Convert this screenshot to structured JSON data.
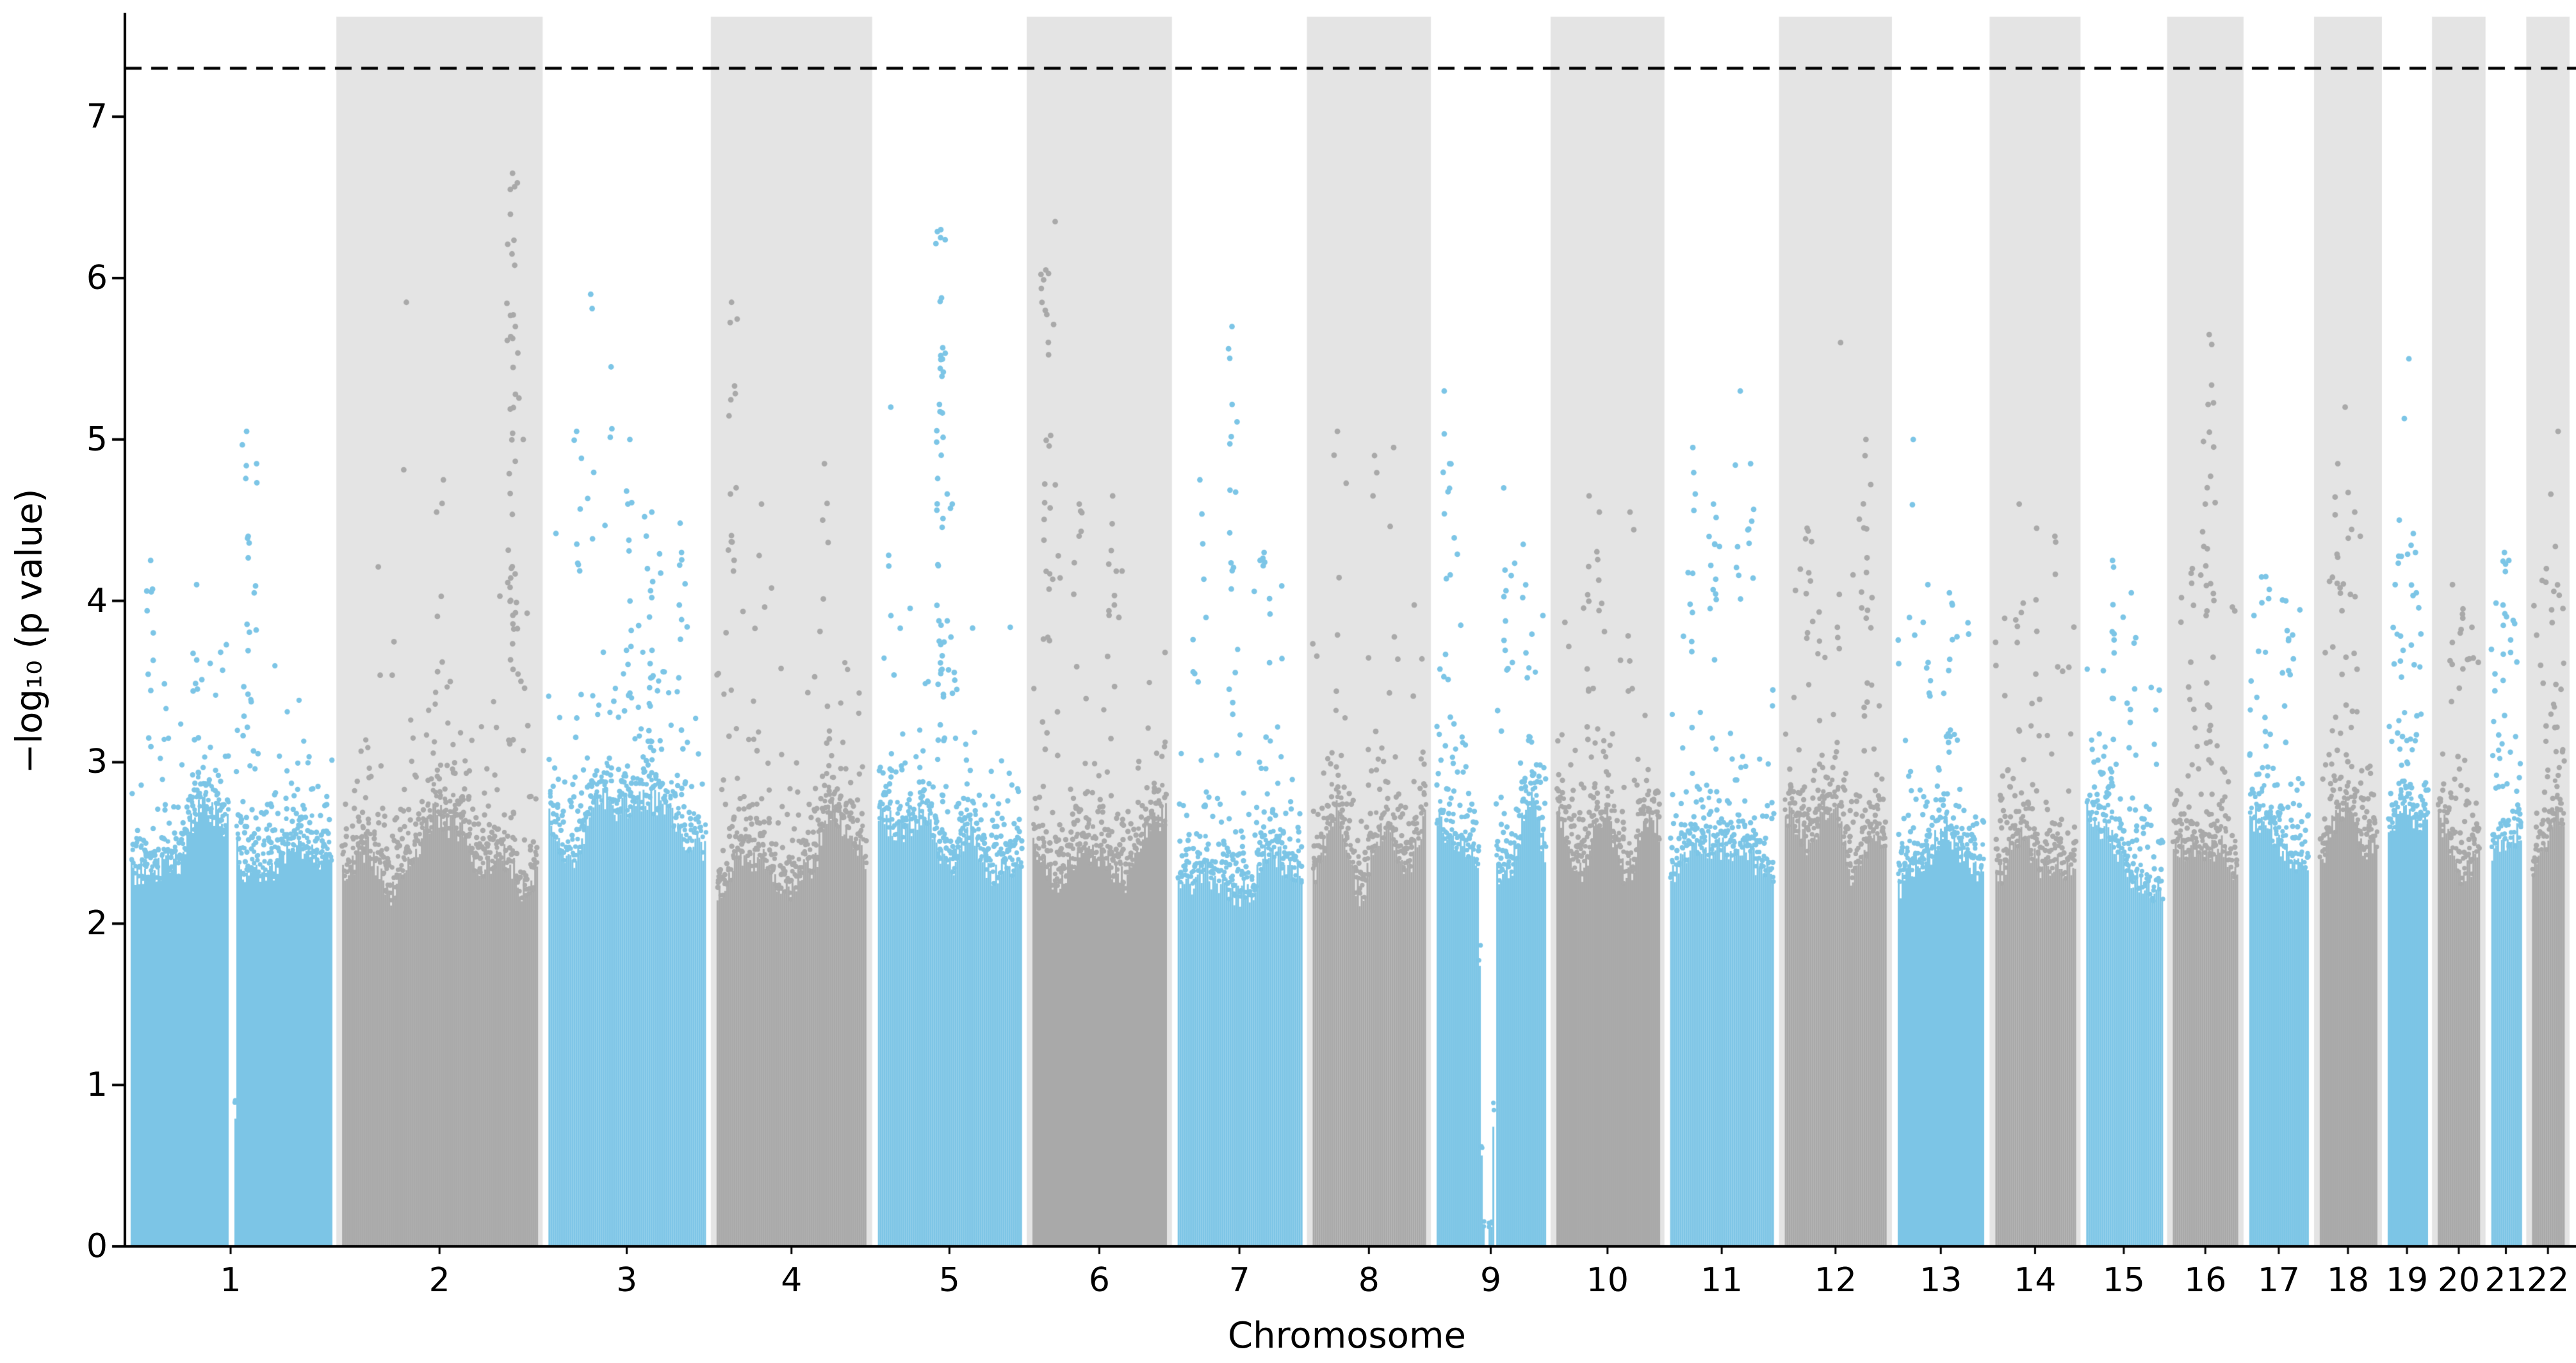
{
  "chart_data": {
    "type": "scatter",
    "subtype": "manhattan",
    "title": "",
    "xlabel": "Chromosome",
    "ylabel": "−log₁₀ (p value)",
    "ylim": [
      0,
      7.62
    ],
    "yticks": [
      0,
      1,
      2,
      3,
      4,
      5,
      6,
      7
    ],
    "grid": false,
    "legend": "none",
    "threshold": {
      "value": 7.3,
      "style": "dashed",
      "color": "#000000"
    },
    "colors": {
      "odd": "#7cc5e6",
      "even": "#a9a9a9",
      "band": "#e4e4e4",
      "axis": "#000000",
      "background": "#ffffff"
    },
    "chromosomes": [
      {
        "label": "1",
        "size": 249,
        "mass_top": 2.5,
        "ambient": 4.25,
        "peaks": [
          {
            "pos": 0.1,
            "top": 4.25,
            "n": 10
          },
          {
            "pos": 0.33,
            "top": 4.1,
            "n": 8
          },
          {
            "pos": 0.58,
            "top": 5.05,
            "n": 16
          },
          {
            "pos": 0.63,
            "top": 4.85,
            "n": 8
          }
        ],
        "gaps": [
          {
            "start": 0.485,
            "end": 0.525,
            "floor": 0
          }
        ]
      },
      {
        "label": "2",
        "size": 243,
        "mass_top": 2.45,
        "ambient": 4.3,
        "peaks": [
          {
            "pos": 0.33,
            "top": 5.85,
            "n": 2
          },
          {
            "pos": 0.52,
            "top": 4.75,
            "n": 6
          },
          {
            "pos": 0.875,
            "top": 6.65,
            "n": 48
          },
          {
            "pos": 0.93,
            "top": 5.0,
            "n": 6
          }
        ],
        "gaps": []
      },
      {
        "label": "3",
        "size": 198,
        "mass_top": 2.5,
        "ambient": 4.55,
        "peaks": [
          {
            "pos": 0.18,
            "top": 5.05,
            "n": 10
          },
          {
            "pos": 0.27,
            "top": 5.9,
            "n": 5
          },
          {
            "pos": 0.4,
            "top": 5.45,
            "n": 6
          },
          {
            "pos": 0.52,
            "top": 5.0,
            "n": 14
          },
          {
            "pos": 0.66,
            "top": 4.55,
            "n": 18
          },
          {
            "pos": 0.85,
            "top": 4.3,
            "n": 10
          }
        ],
        "gaps": []
      },
      {
        "label": "4",
        "size": 190,
        "mass_top": 2.45,
        "ambient": 4.1,
        "peaks": [
          {
            "pos": 0.1,
            "top": 5.85,
            "n": 16
          },
          {
            "pos": 0.3,
            "top": 4.6,
            "n": 5
          },
          {
            "pos": 0.72,
            "top": 4.85,
            "n": 8
          }
        ],
        "gaps": []
      },
      {
        "label": "5",
        "size": 182,
        "mass_top": 2.45,
        "ambient": 4.2,
        "peaks": [
          {
            "pos": 0.09,
            "top": 5.2,
            "n": 4
          },
          {
            "pos": 0.44,
            "top": 6.3,
            "n": 46
          },
          {
            "pos": 0.52,
            "top": 4.6,
            "n": 8
          }
        ],
        "gaps": []
      },
      {
        "label": "6",
        "size": 171,
        "mass_top": 2.5,
        "ambient": 4.4,
        "peaks": [
          {
            "pos": 0.1,
            "top": 6.05,
            "n": 26
          },
          {
            "pos": 0.17,
            "top": 6.35,
            "n": 6
          },
          {
            "pos": 0.35,
            "top": 4.6,
            "n": 8
          },
          {
            "pos": 0.6,
            "top": 4.65,
            "n": 10
          }
        ],
        "gaps": []
      },
      {
        "label": "7",
        "size": 159,
        "mass_top": 2.45,
        "ambient": 4.2,
        "peaks": [
          {
            "pos": 0.18,
            "top": 4.75,
            "n": 6
          },
          {
            "pos": 0.44,
            "top": 5.7,
            "n": 18
          },
          {
            "pos": 0.7,
            "top": 4.3,
            "n": 8
          }
        ],
        "gaps": []
      },
      {
        "label": "8",
        "size": 146,
        "mass_top": 2.45,
        "ambient": 4.1,
        "peaks": [
          {
            "pos": 0.22,
            "top": 5.05,
            "n": 6
          },
          {
            "pos": 0.55,
            "top": 4.9,
            "n": 4
          },
          {
            "pos": 0.72,
            "top": 4.95,
            "n": 3
          }
        ],
        "gaps": []
      },
      {
        "label": "9",
        "size": 141,
        "mass_top": 2.5,
        "ambient": 4.3,
        "peaks": [
          {
            "pos": 0.07,
            "top": 5.3,
            "n": 8
          },
          {
            "pos": 0.12,
            "top": 4.85,
            "n": 10
          },
          {
            "pos": 0.62,
            "top": 4.7,
            "n": 10
          },
          {
            "pos": 0.8,
            "top": 4.35,
            "n": 6
          }
        ],
        "gaps": [
          {
            "start": 0.38,
            "end": 0.54,
            "floor": 0.12
          }
        ]
      },
      {
        "label": "10",
        "size": 134,
        "mass_top": 2.45,
        "ambient": 4.2,
        "peaks": [
          {
            "pos": 0.32,
            "top": 4.65,
            "n": 8
          },
          {
            "pos": 0.42,
            "top": 4.55,
            "n": 6
          },
          {
            "pos": 0.72,
            "top": 4.55,
            "n": 5
          }
        ],
        "gaps": []
      },
      {
        "label": "11",
        "size": 135,
        "mass_top": 2.5,
        "ambient": 4.3,
        "peaks": [
          {
            "pos": 0.22,
            "top": 4.95,
            "n": 10
          },
          {
            "pos": 0.42,
            "top": 4.6,
            "n": 10
          },
          {
            "pos": 0.68,
            "top": 5.3,
            "n": 5
          },
          {
            "pos": 0.78,
            "top": 4.85,
            "n": 6
          }
        ],
        "gaps": []
      },
      {
        "label": "12",
        "size": 133,
        "mass_top": 2.5,
        "ambient": 4.3,
        "peaks": [
          {
            "pos": 0.22,
            "top": 4.45,
            "n": 8
          },
          {
            "pos": 0.55,
            "top": 5.6,
            "n": 3
          },
          {
            "pos": 0.8,
            "top": 5.0,
            "n": 20
          }
        ],
        "gaps": []
      },
      {
        "label": "13",
        "size": 115,
        "mass_top": 2.4,
        "ambient": 3.9,
        "peaks": [
          {
            "pos": 0.18,
            "top": 5.0,
            "n": 3
          },
          {
            "pos": 0.35,
            "top": 4.1,
            "n": 6
          },
          {
            "pos": 0.6,
            "top": 4.05,
            "n": 6
          }
        ],
        "gaps": []
      },
      {
        "label": "14",
        "size": 107,
        "mass_top": 2.4,
        "ambient": 4.0,
        "peaks": [
          {
            "pos": 0.3,
            "top": 4.6,
            "n": 6
          },
          {
            "pos": 0.52,
            "top": 4.45,
            "n": 6
          },
          {
            "pos": 0.75,
            "top": 4.4,
            "n": 4
          }
        ],
        "gaps": []
      },
      {
        "label": "15",
        "size": 102,
        "mass_top": 2.4,
        "ambient": 3.9,
        "peaks": [
          {
            "pos": 0.35,
            "top": 4.25,
            "n": 8
          },
          {
            "pos": 0.6,
            "top": 4.05,
            "n": 6
          }
        ],
        "gaps": []
      },
      {
        "label": "16",
        "size": 90,
        "mass_top": 2.45,
        "ambient": 4.2,
        "peaks": [
          {
            "pos": 0.3,
            "top": 4.2,
            "n": 6
          },
          {
            "pos": 0.5,
            "top": 4.6,
            "n": 8
          },
          {
            "pos": 0.56,
            "top": 5.65,
            "n": 20
          }
        ],
        "gaps": []
      },
      {
        "label": "17",
        "size": 83,
        "mass_top": 2.45,
        "ambient": 4.1,
        "peaks": [
          {
            "pos": 0.28,
            "top": 4.15,
            "n": 8
          },
          {
            "pos": 0.62,
            "top": 4.0,
            "n": 8
          }
        ],
        "gaps": []
      },
      {
        "label": "18",
        "size": 80,
        "mass_top": 2.45,
        "ambient": 4.2,
        "peaks": [
          {
            "pos": 0.32,
            "top": 4.85,
            "n": 10
          },
          {
            "pos": 0.45,
            "top": 5.2,
            "n": 6
          },
          {
            "pos": 0.62,
            "top": 4.55,
            "n": 6
          }
        ],
        "gaps": []
      },
      {
        "label": "19",
        "size": 59,
        "mass_top": 2.45,
        "ambient": 4.4,
        "peaks": [
          {
            "pos": 0.3,
            "top": 4.5,
            "n": 10
          },
          {
            "pos": 0.55,
            "top": 5.5,
            "n": 4
          },
          {
            "pos": 0.72,
            "top": 4.3,
            "n": 6
          }
        ],
        "gaps": []
      },
      {
        "label": "20",
        "size": 63,
        "mass_top": 2.4,
        "ambient": 3.95,
        "peaks": [
          {
            "pos": 0.35,
            "top": 4.1,
            "n": 5
          },
          {
            "pos": 0.6,
            "top": 3.95,
            "n": 5
          }
        ],
        "gaps": []
      },
      {
        "label": "21",
        "size": 48,
        "mass_top": 2.4,
        "ambient": 4.0,
        "peaks": [
          {
            "pos": 0.45,
            "top": 4.3,
            "n": 8
          },
          {
            "pos": 0.6,
            "top": 4.25,
            "n": 6
          }
        ],
        "gaps": []
      },
      {
        "label": "22",
        "size": 51,
        "mass_top": 2.4,
        "ambient": 4.1,
        "peaks": [
          {
            "pos": 0.45,
            "top": 4.2,
            "n": 6
          },
          {
            "pos": 0.82,
            "top": 5.05,
            "n": 6
          }
        ],
        "gaps": []
      }
    ]
  }
}
